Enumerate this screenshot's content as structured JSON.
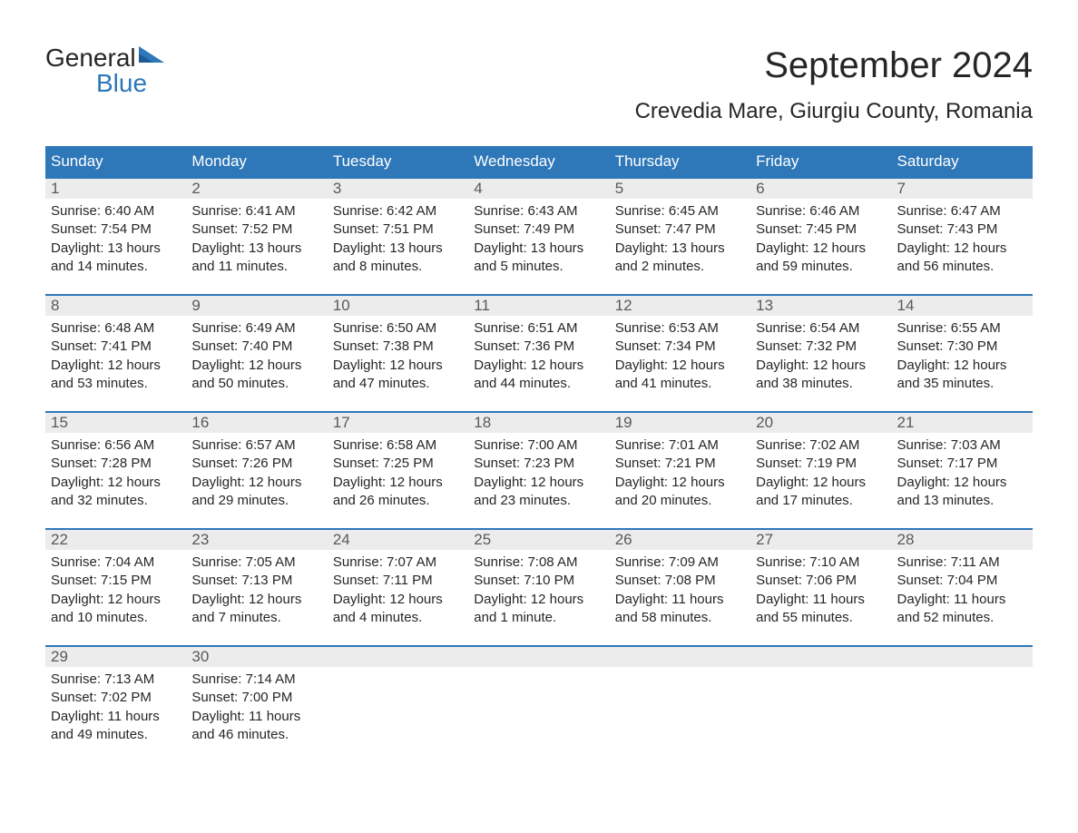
{
  "logo": {
    "top": "General",
    "bottom": "Blue"
  },
  "title": "September 2024",
  "location": "Crevedia Mare, Giurgiu County, Romania",
  "colors": {
    "header_bg": "#2e77b8",
    "header_text": "#ffffff",
    "daynum_bg": "#ececec",
    "daynum_text": "#595959",
    "body_text": "#262626",
    "week_border": "#2e77b8",
    "logo_blue": "#2e77b8",
    "page_bg": "#ffffff"
  },
  "fonts": {
    "title_size_pt": 30,
    "location_size_pt": 18,
    "dow_size_pt": 13,
    "daynum_size_pt": 13,
    "body_size_pt": 11,
    "logo_size_pt": 21
  },
  "days_of_week": [
    "Sunday",
    "Monday",
    "Tuesday",
    "Wednesday",
    "Thursday",
    "Friday",
    "Saturday"
  ],
  "weeks": [
    [
      {
        "n": "1",
        "sunrise": "Sunrise: 6:40 AM",
        "sunset": "Sunset: 7:54 PM",
        "d1": "Daylight: 13 hours",
        "d2": "and 14 minutes."
      },
      {
        "n": "2",
        "sunrise": "Sunrise: 6:41 AM",
        "sunset": "Sunset: 7:52 PM",
        "d1": "Daylight: 13 hours",
        "d2": "and 11 minutes."
      },
      {
        "n": "3",
        "sunrise": "Sunrise: 6:42 AM",
        "sunset": "Sunset: 7:51 PM",
        "d1": "Daylight: 13 hours",
        "d2": "and 8 minutes."
      },
      {
        "n": "4",
        "sunrise": "Sunrise: 6:43 AM",
        "sunset": "Sunset: 7:49 PM",
        "d1": "Daylight: 13 hours",
        "d2": "and 5 minutes."
      },
      {
        "n": "5",
        "sunrise": "Sunrise: 6:45 AM",
        "sunset": "Sunset: 7:47 PM",
        "d1": "Daylight: 13 hours",
        "d2": "and 2 minutes."
      },
      {
        "n": "6",
        "sunrise": "Sunrise: 6:46 AM",
        "sunset": "Sunset: 7:45 PM",
        "d1": "Daylight: 12 hours",
        "d2": "and 59 minutes."
      },
      {
        "n": "7",
        "sunrise": "Sunrise: 6:47 AM",
        "sunset": "Sunset: 7:43 PM",
        "d1": "Daylight: 12 hours",
        "d2": "and 56 minutes."
      }
    ],
    [
      {
        "n": "8",
        "sunrise": "Sunrise: 6:48 AM",
        "sunset": "Sunset: 7:41 PM",
        "d1": "Daylight: 12 hours",
        "d2": "and 53 minutes."
      },
      {
        "n": "9",
        "sunrise": "Sunrise: 6:49 AM",
        "sunset": "Sunset: 7:40 PM",
        "d1": "Daylight: 12 hours",
        "d2": "and 50 minutes."
      },
      {
        "n": "10",
        "sunrise": "Sunrise: 6:50 AM",
        "sunset": "Sunset: 7:38 PM",
        "d1": "Daylight: 12 hours",
        "d2": "and 47 minutes."
      },
      {
        "n": "11",
        "sunrise": "Sunrise: 6:51 AM",
        "sunset": "Sunset: 7:36 PM",
        "d1": "Daylight: 12 hours",
        "d2": "and 44 minutes."
      },
      {
        "n": "12",
        "sunrise": "Sunrise: 6:53 AM",
        "sunset": "Sunset: 7:34 PM",
        "d1": "Daylight: 12 hours",
        "d2": "and 41 minutes."
      },
      {
        "n": "13",
        "sunrise": "Sunrise: 6:54 AM",
        "sunset": "Sunset: 7:32 PM",
        "d1": "Daylight: 12 hours",
        "d2": "and 38 minutes."
      },
      {
        "n": "14",
        "sunrise": "Sunrise: 6:55 AM",
        "sunset": "Sunset: 7:30 PM",
        "d1": "Daylight: 12 hours",
        "d2": "and 35 minutes."
      }
    ],
    [
      {
        "n": "15",
        "sunrise": "Sunrise: 6:56 AM",
        "sunset": "Sunset: 7:28 PM",
        "d1": "Daylight: 12 hours",
        "d2": "and 32 minutes."
      },
      {
        "n": "16",
        "sunrise": "Sunrise: 6:57 AM",
        "sunset": "Sunset: 7:26 PM",
        "d1": "Daylight: 12 hours",
        "d2": "and 29 minutes."
      },
      {
        "n": "17",
        "sunrise": "Sunrise: 6:58 AM",
        "sunset": "Sunset: 7:25 PM",
        "d1": "Daylight: 12 hours",
        "d2": "and 26 minutes."
      },
      {
        "n": "18",
        "sunrise": "Sunrise: 7:00 AM",
        "sunset": "Sunset: 7:23 PM",
        "d1": "Daylight: 12 hours",
        "d2": "and 23 minutes."
      },
      {
        "n": "19",
        "sunrise": "Sunrise: 7:01 AM",
        "sunset": "Sunset: 7:21 PM",
        "d1": "Daylight: 12 hours",
        "d2": "and 20 minutes."
      },
      {
        "n": "20",
        "sunrise": "Sunrise: 7:02 AM",
        "sunset": "Sunset: 7:19 PM",
        "d1": "Daylight: 12 hours",
        "d2": "and 17 minutes."
      },
      {
        "n": "21",
        "sunrise": "Sunrise: 7:03 AM",
        "sunset": "Sunset: 7:17 PM",
        "d1": "Daylight: 12 hours",
        "d2": "and 13 minutes."
      }
    ],
    [
      {
        "n": "22",
        "sunrise": "Sunrise: 7:04 AM",
        "sunset": "Sunset: 7:15 PM",
        "d1": "Daylight: 12 hours",
        "d2": "and 10 minutes."
      },
      {
        "n": "23",
        "sunrise": "Sunrise: 7:05 AM",
        "sunset": "Sunset: 7:13 PM",
        "d1": "Daylight: 12 hours",
        "d2": "and 7 minutes."
      },
      {
        "n": "24",
        "sunrise": "Sunrise: 7:07 AM",
        "sunset": "Sunset: 7:11 PM",
        "d1": "Daylight: 12 hours",
        "d2": "and 4 minutes."
      },
      {
        "n": "25",
        "sunrise": "Sunrise: 7:08 AM",
        "sunset": "Sunset: 7:10 PM",
        "d1": "Daylight: 12 hours",
        "d2": "and 1 minute."
      },
      {
        "n": "26",
        "sunrise": "Sunrise: 7:09 AM",
        "sunset": "Sunset: 7:08 PM",
        "d1": "Daylight: 11 hours",
        "d2": "and 58 minutes."
      },
      {
        "n": "27",
        "sunrise": "Sunrise: 7:10 AM",
        "sunset": "Sunset: 7:06 PM",
        "d1": "Daylight: 11 hours",
        "d2": "and 55 minutes."
      },
      {
        "n": "28",
        "sunrise": "Sunrise: 7:11 AM",
        "sunset": "Sunset: 7:04 PM",
        "d1": "Daylight: 11 hours",
        "d2": "and 52 minutes."
      }
    ],
    [
      {
        "n": "29",
        "sunrise": "Sunrise: 7:13 AM",
        "sunset": "Sunset: 7:02 PM",
        "d1": "Daylight: 11 hours",
        "d2": "and 49 minutes."
      },
      {
        "n": "30",
        "sunrise": "Sunrise: 7:14 AM",
        "sunset": "Sunset: 7:00 PM",
        "d1": "Daylight: 11 hours",
        "d2": "and 46 minutes."
      },
      {
        "empty": true
      },
      {
        "empty": true
      },
      {
        "empty": true
      },
      {
        "empty": true
      },
      {
        "empty": true
      }
    ]
  ]
}
